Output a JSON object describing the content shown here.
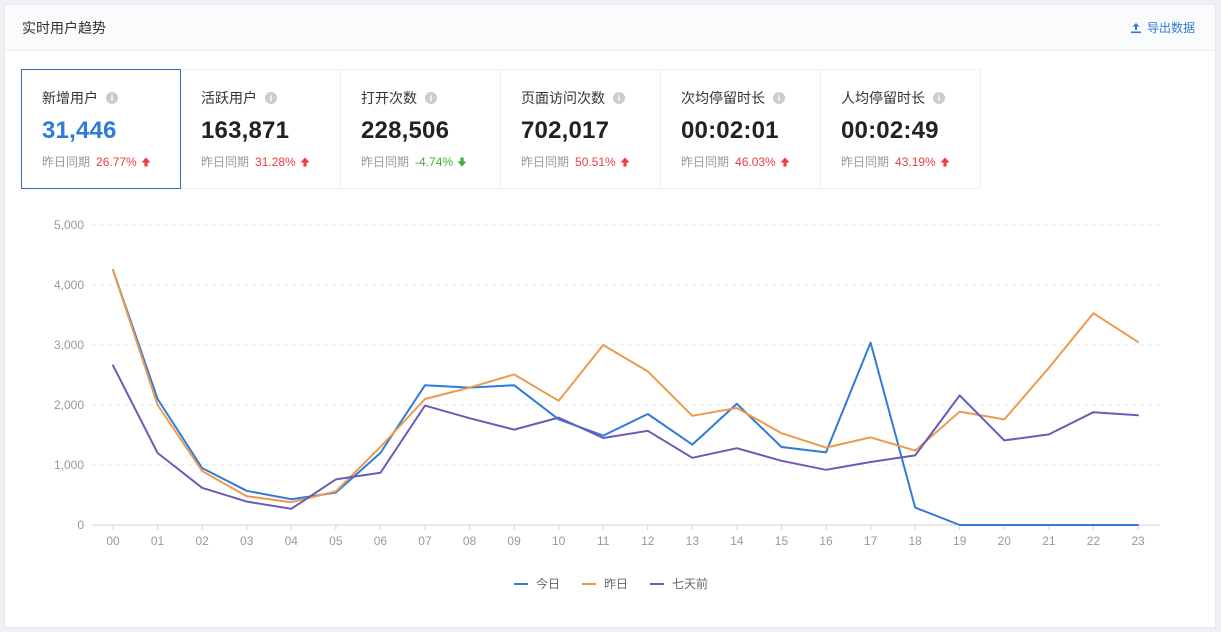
{
  "header": {
    "title": "实时用户趋势",
    "export_label": "导出数据"
  },
  "metrics": [
    {
      "label": "新增用户",
      "value": "31,446",
      "compare_label": "昨日同期",
      "delta": "26.77%",
      "direction": "up"
    },
    {
      "label": "活跃用户",
      "value": "163,871",
      "compare_label": "昨日同期",
      "delta": "31.28%",
      "direction": "up"
    },
    {
      "label": "打开次数",
      "value": "228,506",
      "compare_label": "昨日同期",
      "delta": "-4.74%",
      "direction": "down"
    },
    {
      "label": "页面访问次数",
      "value": "702,017",
      "compare_label": "昨日同期",
      "delta": "50.51%",
      "direction": "up"
    },
    {
      "label": "次均停留时长",
      "value": "00:02:01",
      "compare_label": "昨日同期",
      "delta": "46.03%",
      "direction": "up"
    },
    {
      "label": "人均停留时长",
      "value": "00:02:49",
      "compare_label": "昨日同期",
      "delta": "43.19%",
      "direction": "up"
    }
  ],
  "chart_data": {
    "type": "line",
    "title": "",
    "xlabel": "",
    "ylabel": "",
    "categories": [
      "00",
      "01",
      "02",
      "03",
      "04",
      "05",
      "06",
      "07",
      "08",
      "09",
      "10",
      "11",
      "12",
      "13",
      "14",
      "15",
      "16",
      "17",
      "18",
      "19",
      "20",
      "21",
      "22",
      "23"
    ],
    "ylim": [
      0,
      5000
    ],
    "yticks": [
      "0",
      "1,000",
      "2,000",
      "3,000",
      "4,000",
      "5,000"
    ],
    "grid": true,
    "legend_position": "bottom-center",
    "series": [
      {
        "name": "今日",
        "color": "#2f7bd8",
        "values": [
          4250,
          2100,
          950,
          570,
          430,
          540,
          1200,
          2330,
          2290,
          2330,
          1760,
          1490,
          1850,
          1340,
          2020,
          1300,
          1210,
          3040,
          290,
          0,
          0,
          0,
          0,
          0
        ]
      },
      {
        "name": "昨日",
        "color": "#ee9a4d",
        "values": [
          4250,
          2000,
          900,
          480,
          380,
          560,
          1300,
          2100,
          2290,
          2510,
          2070,
          3000,
          2560,
          1820,
          1950,
          1530,
          1290,
          1460,
          1240,
          1890,
          1760,
          2620,
          3530,
          3050
        ]
      },
      {
        "name": "七天前",
        "color": "#6b5bb6",
        "values": [
          2660,
          1200,
          620,
          390,
          270,
          760,
          870,
          1990,
          1780,
          1590,
          1790,
          1450,
          1570,
          1120,
          1280,
          1070,
          920,
          1050,
          1160,
          2160,
          1410,
          1510,
          1880,
          1830
        ]
      }
    ]
  },
  "icons": {
    "export": "upload-icon",
    "info": "info-icon",
    "up": "arrow-up-icon",
    "down": "arrow-down-icon"
  }
}
